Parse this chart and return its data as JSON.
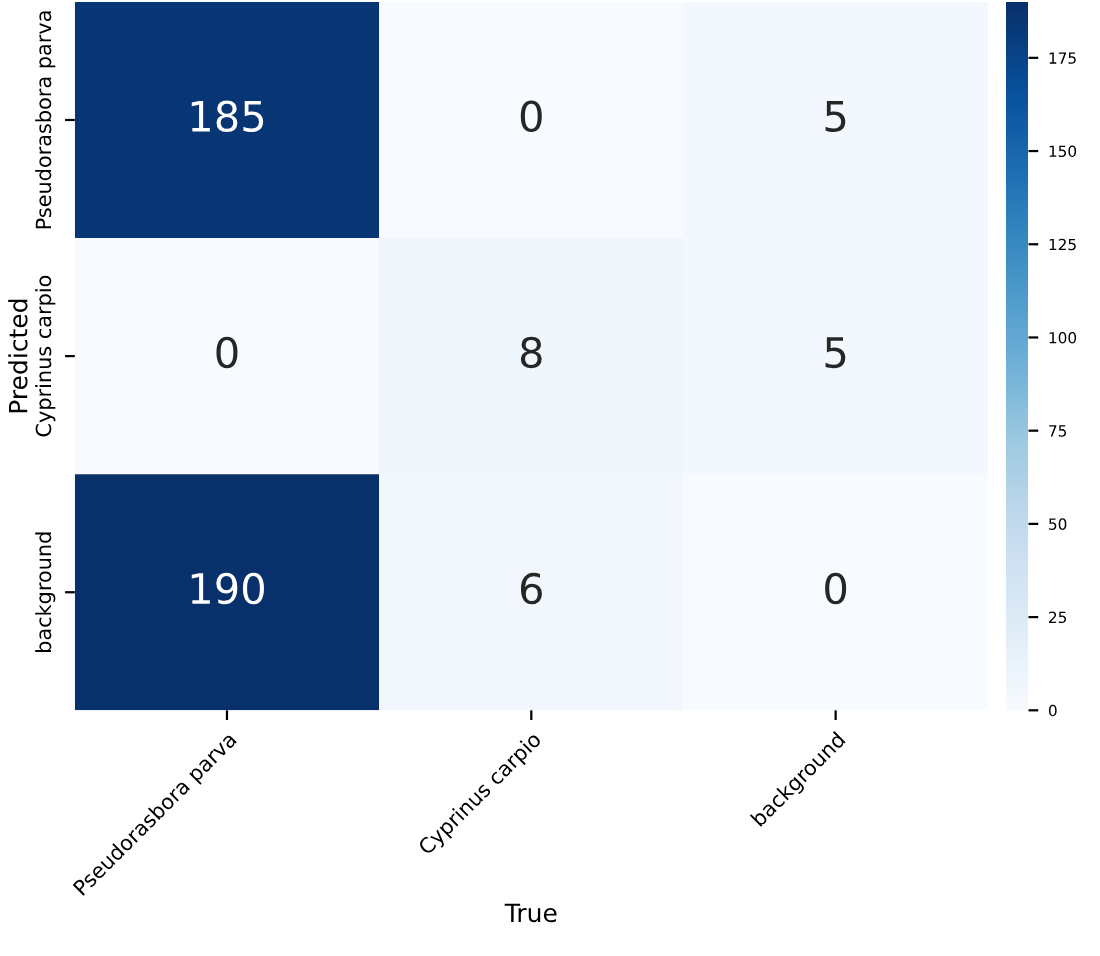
{
  "chart_data": {
    "type": "heatmap",
    "xlabel": "True",
    "ylabel": "Predicted",
    "categories": [
      "Pseudorasbora parva",
      "Cyprinus carpio",
      "background"
    ],
    "y_categories": [
      "Pseudorasbora parva",
      "Cyprinus carpio",
      "background"
    ],
    "cells": [
      [
        185,
        0,
        5
      ],
      [
        0,
        8,
        5
      ],
      [
        190,
        6,
        0
      ]
    ],
    "data_labels": true,
    "clim": [
      0,
      190
    ],
    "cticks": [
      0,
      25,
      50,
      75,
      100,
      125,
      150,
      175
    ]
  }
}
